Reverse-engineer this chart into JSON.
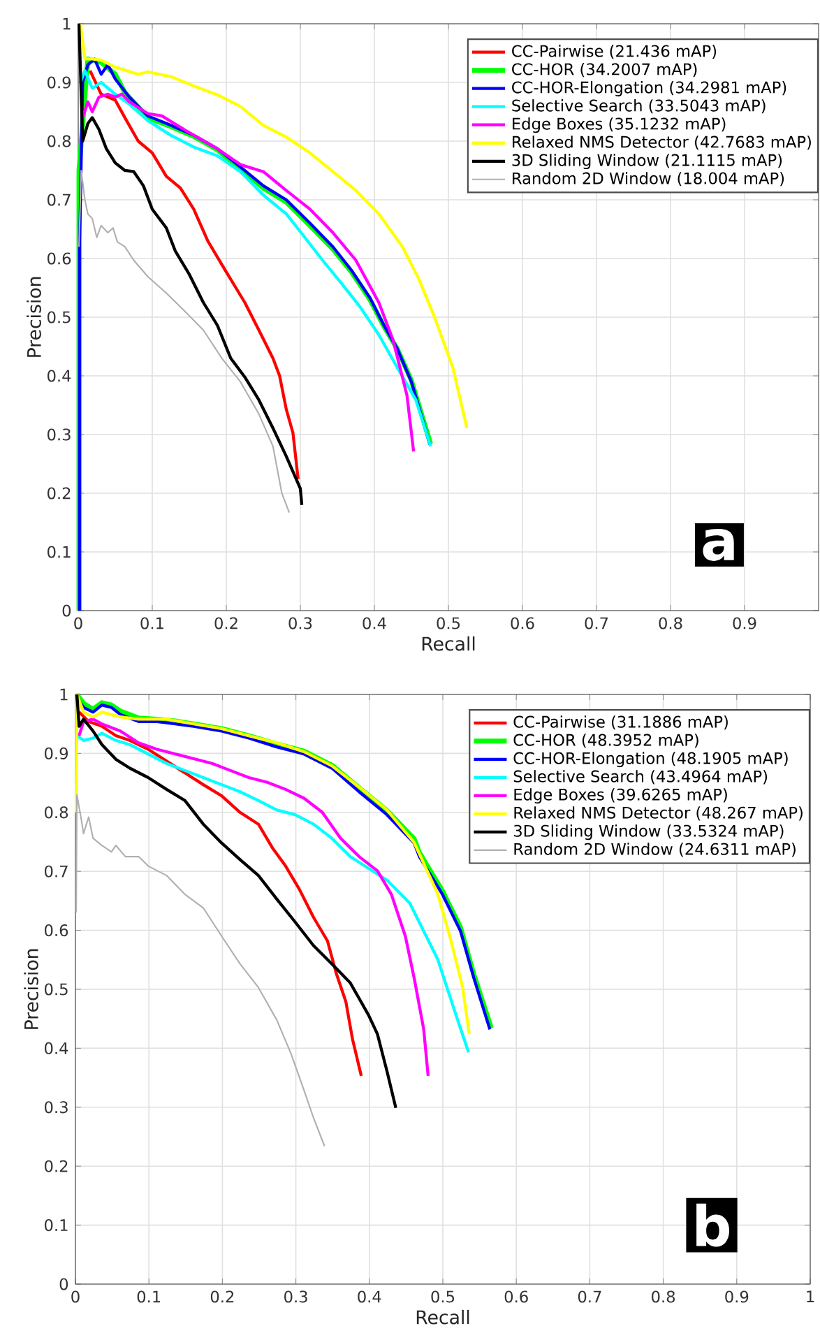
{
  "chart_data": [
    {
      "type": "line",
      "xlabel": "Recall",
      "ylabel": "Precision",
      "xlim": [
        0,
        1
      ],
      "ylim": [
        0,
        1
      ],
      "xticks": [
        0,
        0.1,
        0.2,
        0.3,
        0.4,
        0.5,
        0.6,
        0.7,
        0.8,
        0.9
      ],
      "yticks": [
        0,
        0.1,
        0.2,
        0.3,
        0.4,
        0.5,
        0.6,
        0.7,
        0.8,
        0.9,
        1
      ],
      "grid": true,
      "legend": "top right",
      "annotations": [
        "a"
      ],
      "series": [
        {
          "name": "CC-Pairwise (21.436 mAP)",
          "color": "#ff0000",
          "x": [
            0.016,
            0.031,
            0.05,
            0.063,
            0.081,
            0.1,
            0.119,
            0.138,
            0.156,
            0.175,
            0.2,
            0.225,
            0.244,
            0.263,
            0.272,
            0.281,
            0.29,
            0.297
          ],
          "values": [
            0.92,
            0.88,
            0.87,
            0.84,
            0.8,
            0.78,
            0.74,
            0.72,
            0.684,
            0.63,
            0.577,
            0.525,
            0.478,
            0.43,
            0.4,
            0.343,
            0.303,
            0.224
          ]
        },
        {
          "name": "CC-HOR (34.2007 mAP)",
          "color": "#00ff00",
          "x": [
            0.001,
            0.001,
            0.013,
            0.031,
            0.05,
            0.063,
            0.094,
            0.125,
            0.156,
            0.188,
            0.219,
            0.25,
            0.281,
            0.313,
            0.344,
            0.369,
            0.394,
            0.413,
            0.431,
            0.45,
            0.476
          ],
          "values": [
            0,
            0.75,
            0.94,
            0.934,
            0.914,
            0.883,
            0.84,
            0.825,
            0.808,
            0.785,
            0.753,
            0.72,
            0.696,
            0.656,
            0.616,
            0.577,
            0.53,
            0.484,
            0.446,
            0.392,
            0.284
          ]
        },
        {
          "name": "CC-HOR-Elongation (34.2981 mAP)",
          "color": "#0000ff",
          "x": [
            0.002,
            0.002,
            0.006,
            0.013,
            0.022,
            0.031,
            0.04,
            0.05,
            0.069,
            0.094,
            0.125,
            0.156,
            0.188,
            0.219,
            0.25,
            0.281,
            0.313,
            0.344,
            0.369,
            0.394,
            0.413,
            0.431,
            0.45,
            0.475
          ],
          "values": [
            0,
            0.63,
            0.9,
            0.93,
            0.94,
            0.914,
            0.93,
            0.906,
            0.875,
            0.843,
            0.827,
            0.81,
            0.787,
            0.756,
            0.724,
            0.7,
            0.66,
            0.62,
            0.58,
            0.533,
            0.486,
            0.446,
            0.39,
            0.283
          ]
        },
        {
          "name": "Selective Search (33.5043 mAP)",
          "color": "#00ffff",
          "x": [
            0.003,
            0.009,
            0.019,
            0.031,
            0.05,
            0.069,
            0.094,
            0.125,
            0.156,
            0.188,
            0.219,
            0.25,
            0.281,
            0.306,
            0.33,
            0.356,
            0.381,
            0.406,
            0.431,
            0.456,
            0.476
          ],
          "values": [
            0.9,
            0.92,
            0.89,
            0.9,
            0.88,
            0.863,
            0.835,
            0.81,
            0.79,
            0.775,
            0.748,
            0.708,
            0.676,
            0.636,
            0.597,
            0.557,
            0.517,
            0.47,
            0.414,
            0.359,
            0.28
          ]
        },
        {
          "name": "Edge Boxes (35.1232 mAP)",
          "color": "#ff00ff",
          "x": [
            0.006,
            0.013,
            0.019,
            0.028,
            0.04,
            0.05,
            0.059,
            0.069,
            0.094,
            0.113,
            0.144,
            0.188,
            0.219,
            0.25,
            0.281,
            0.313,
            0.344,
            0.375,
            0.406,
            0.425,
            0.444,
            0.453
          ],
          "values": [
            0.84,
            0.867,
            0.85,
            0.875,
            0.88,
            0.875,
            0.88,
            0.867,
            0.847,
            0.843,
            0.819,
            0.787,
            0.76,
            0.748,
            0.716,
            0.684,
            0.644,
            0.597,
            0.525,
            0.462,
            0.367,
            0.271
          ]
        },
        {
          "name": "Relaxed NMS Detector (42.7683 mAP)",
          "color": "#ffff00",
          "x": [
            0.003,
            0.009,
            0.019,
            0.031,
            0.05,
            0.081,
            0.094,
            0.125,
            0.156,
            0.188,
            0.219,
            0.25,
            0.281,
            0.313,
            0.344,
            0.375,
            0.406,
            0.438,
            0.46,
            0.481,
            0.506,
            0.525
          ],
          "values": [
            1,
            0.94,
            0.94,
            0.938,
            0.926,
            0.914,
            0.918,
            0.91,
            0.894,
            0.879,
            0.859,
            0.827,
            0.807,
            0.78,
            0.748,
            0.716,
            0.676,
            0.62,
            0.565,
            0.501,
            0.414,
            0.311
          ]
        },
        {
          "name": "3D Sliding Window (21.1115 mAP)",
          "color": "#000000",
          "x": [
            0.001,
            0.006,
            0.013,
            0.019,
            0.028,
            0.038,
            0.05,
            0.063,
            0.075,
            0.088,
            0.1,
            0.119,
            0.131,
            0.15,
            0.169,
            0.188,
            0.206,
            0.225,
            0.244,
            0.263,
            0.281,
            0.3,
            0.302
          ],
          "values": [
            1,
            0.8,
            0.83,
            0.84,
            0.82,
            0.787,
            0.763,
            0.75,
            0.748,
            0.724,
            0.684,
            0.652,
            0.613,
            0.573,
            0.525,
            0.486,
            0.43,
            0.398,
            0.359,
            0.311,
            0.263,
            0.208,
            0.18
          ]
        },
        {
          "name": "Random 2D Window (18.004 mAP)",
          "color": "#b0b0b0",
          "x": [
            0.001,
            0.004,
            0.009,
            0.013,
            0.019,
            0.025,
            0.031,
            0.04,
            0.047,
            0.053,
            0.063,
            0.075,
            0.094,
            0.119,
            0.144,
            0.169,
            0.194,
            0.219,
            0.244,
            0.263,
            0.275,
            0.285
          ],
          "values": [
            0.62,
            0.75,
            0.7,
            0.676,
            0.668,
            0.636,
            0.656,
            0.644,
            0.652,
            0.628,
            0.62,
            0.597,
            0.569,
            0.541,
            0.51,
            0.478,
            0.43,
            0.39,
            0.335,
            0.28,
            0.2,
            0.167
          ]
        }
      ]
    },
    {
      "type": "line",
      "xlabel": "Recall",
      "ylabel": "Precision",
      "xlim": [
        0,
        1
      ],
      "ylim": [
        0,
        1
      ],
      "xticks": [
        0,
        0.1,
        0.2,
        0.3,
        0.4,
        0.5,
        0.6,
        0.7,
        0.8,
        0.9,
        1
      ],
      "yticks": [
        0,
        0.1,
        0.2,
        0.3,
        0.4,
        0.5,
        0.6,
        0.7,
        0.8,
        0.9,
        1
      ],
      "grid": true,
      "legend": "top right",
      "annotations": [
        "b"
      ],
      "series": [
        {
          "name": "CC-Pairwise (31.1886 mAP)",
          "color": "#ff0000",
          "x": [
            0.005,
            0.018,
            0.036,
            0.055,
            0.074,
            0.099,
            0.124,
            0.149,
            0.174,
            0.199,
            0.224,
            0.249,
            0.268,
            0.286,
            0.305,
            0.324,
            0.343,
            0.355,
            0.368,
            0.377,
            0.389
          ],
          "values": [
            0.97,
            0.954,
            0.946,
            0.93,
            0.922,
            0.907,
            0.887,
            0.867,
            0.847,
            0.828,
            0.8,
            0.78,
            0.74,
            0.709,
            0.669,
            0.622,
            0.582,
            0.527,
            0.479,
            0.416,
            0.353
          ]
        },
        {
          "name": "CC-HOR (48.3952 mAP)",
          "color": "#00ff00",
          "x": [
            0.002,
            0.011,
            0.024,
            0.036,
            0.049,
            0.061,
            0.086,
            0.111,
            0.136,
            0.161,
            0.199,
            0.236,
            0.274,
            0.311,
            0.349,
            0.386,
            0.424,
            0.461,
            0.468,
            0.499,
            0.524,
            0.542,
            0.566
          ],
          "values": [
            1,
            0.985,
            0.975,
            0.986,
            0.982,
            0.972,
            0.96,
            0.958,
            0.955,
            0.95,
            0.942,
            0.93,
            0.916,
            0.904,
            0.88,
            0.842,
            0.803,
            0.755,
            0.732,
            0.668,
            0.605,
            0.526,
            0.434
          ]
        },
        {
          "name": "CC-HOR-Elongation (48.1905 mAP)",
          "color": "#0000ff",
          "x": [
            0.002,
            0.011,
            0.024,
            0.036,
            0.049,
            0.061,
            0.086,
            0.111,
            0.136,
            0.161,
            0.199,
            0.236,
            0.274,
            0.311,
            0.349,
            0.386,
            0.424,
            0.461,
            0.468,
            0.499,
            0.524,
            0.542,
            0.564
          ],
          "values": [
            0.994,
            0.978,
            0.97,
            0.982,
            0.978,
            0.966,
            0.954,
            0.954,
            0.95,
            0.946,
            0.938,
            0.926,
            0.911,
            0.899,
            0.875,
            0.835,
            0.796,
            0.748,
            0.725,
            0.662,
            0.599,
            0.52,
            0.432
          ]
        },
        {
          "name": "Selective Search (43.4964 mAP)",
          "color": "#00ffff",
          "x": [
            0.002,
            0.011,
            0.024,
            0.036,
            0.055,
            0.074,
            0.099,
            0.124,
            0.149,
            0.174,
            0.199,
            0.224,
            0.249,
            0.274,
            0.299,
            0.324,
            0.349,
            0.374,
            0.399,
            0.424,
            0.455,
            0.493,
            0.518,
            0.535
          ],
          "values": [
            0.93,
            0.922,
            0.926,
            0.934,
            0.922,
            0.915,
            0.899,
            0.883,
            0.871,
            0.859,
            0.847,
            0.835,
            0.82,
            0.804,
            0.796,
            0.78,
            0.756,
            0.725,
            0.705,
            0.685,
            0.646,
            0.551,
            0.456,
            0.393
          ]
        },
        {
          "name": "Edge Boxes (39.6265 mAP)",
          "color": "#ff00ff",
          "x": [
            0.005,
            0.011,
            0.024,
            0.036,
            0.061,
            0.086,
            0.111,
            0.136,
            0.161,
            0.186,
            0.211,
            0.236,
            0.261,
            0.286,
            0.311,
            0.336,
            0.361,
            0.386,
            0.411,
            0.43,
            0.449,
            0.461,
            0.474,
            0.48
          ],
          "values": [
            0.93,
            0.954,
            0.958,
            0.95,
            0.938,
            0.918,
            0.907,
            0.899,
            0.891,
            0.883,
            0.871,
            0.859,
            0.851,
            0.839,
            0.824,
            0.8,
            0.756,
            0.725,
            0.701,
            0.661,
            0.59,
            0.519,
            0.432,
            0.353
          ]
        },
        {
          "name": "Relaxed NMS Detector (48.267 mAP)",
          "color": "#ffff00",
          "x": [
            0.001,
            0.002,
            0.011,
            0.024,
            0.036,
            0.061,
            0.086,
            0.124,
            0.161,
            0.199,
            0.236,
            0.274,
            0.311,
            0.349,
            0.386,
            0.424,
            0.461,
            0.493,
            0.511,
            0.527,
            0.536
          ],
          "values": [
            0.8,
            1,
            0.97,
            0.962,
            0.97,
            0.962,
            0.958,
            0.958,
            0.95,
            0.942,
            0.93,
            0.918,
            0.903,
            0.879,
            0.843,
            0.804,
            0.749,
            0.662,
            0.583,
            0.503,
            0.424
          ]
        },
        {
          "name": "3D Sliding Window (33.5324 mAP)",
          "color": "#000000",
          "x": [
            0.002,
            0.005,
            0.011,
            0.024,
            0.036,
            0.055,
            0.074,
            0.099,
            0.124,
            0.149,
            0.174,
            0.199,
            0.224,
            0.249,
            0.274,
            0.299,
            0.324,
            0.349,
            0.374,
            0.399,
            0.411,
            0.424,
            0.436
          ],
          "values": [
            1,
            0.946,
            0.958,
            0.938,
            0.915,
            0.89,
            0.875,
            0.859,
            0.839,
            0.82,
            0.78,
            0.748,
            0.72,
            0.693,
            0.653,
            0.614,
            0.574,
            0.543,
            0.511,
            0.456,
            0.424,
            0.361,
            0.299
          ]
        },
        {
          "name": "Random 2D Window (24.6311 mAP)",
          "color": "#b0b0b0",
          "x": [
            0.001,
            0.002,
            0.008,
            0.011,
            0.018,
            0.024,
            0.036,
            0.049,
            0.055,
            0.068,
            0.086,
            0.099,
            0.124,
            0.149,
            0.174,
            0.199,
            0.224,
            0.249,
            0.274,
            0.293,
            0.311,
            0.324,
            0.339
          ],
          "values": [
            0.63,
            0.83,
            0.788,
            0.764,
            0.792,
            0.756,
            0.744,
            0.733,
            0.744,
            0.725,
            0.725,
            0.709,
            0.693,
            0.661,
            0.638,
            0.59,
            0.543,
            0.503,
            0.448,
            0.392,
            0.329,
            0.282,
            0.234
          ]
        }
      ]
    }
  ]
}
